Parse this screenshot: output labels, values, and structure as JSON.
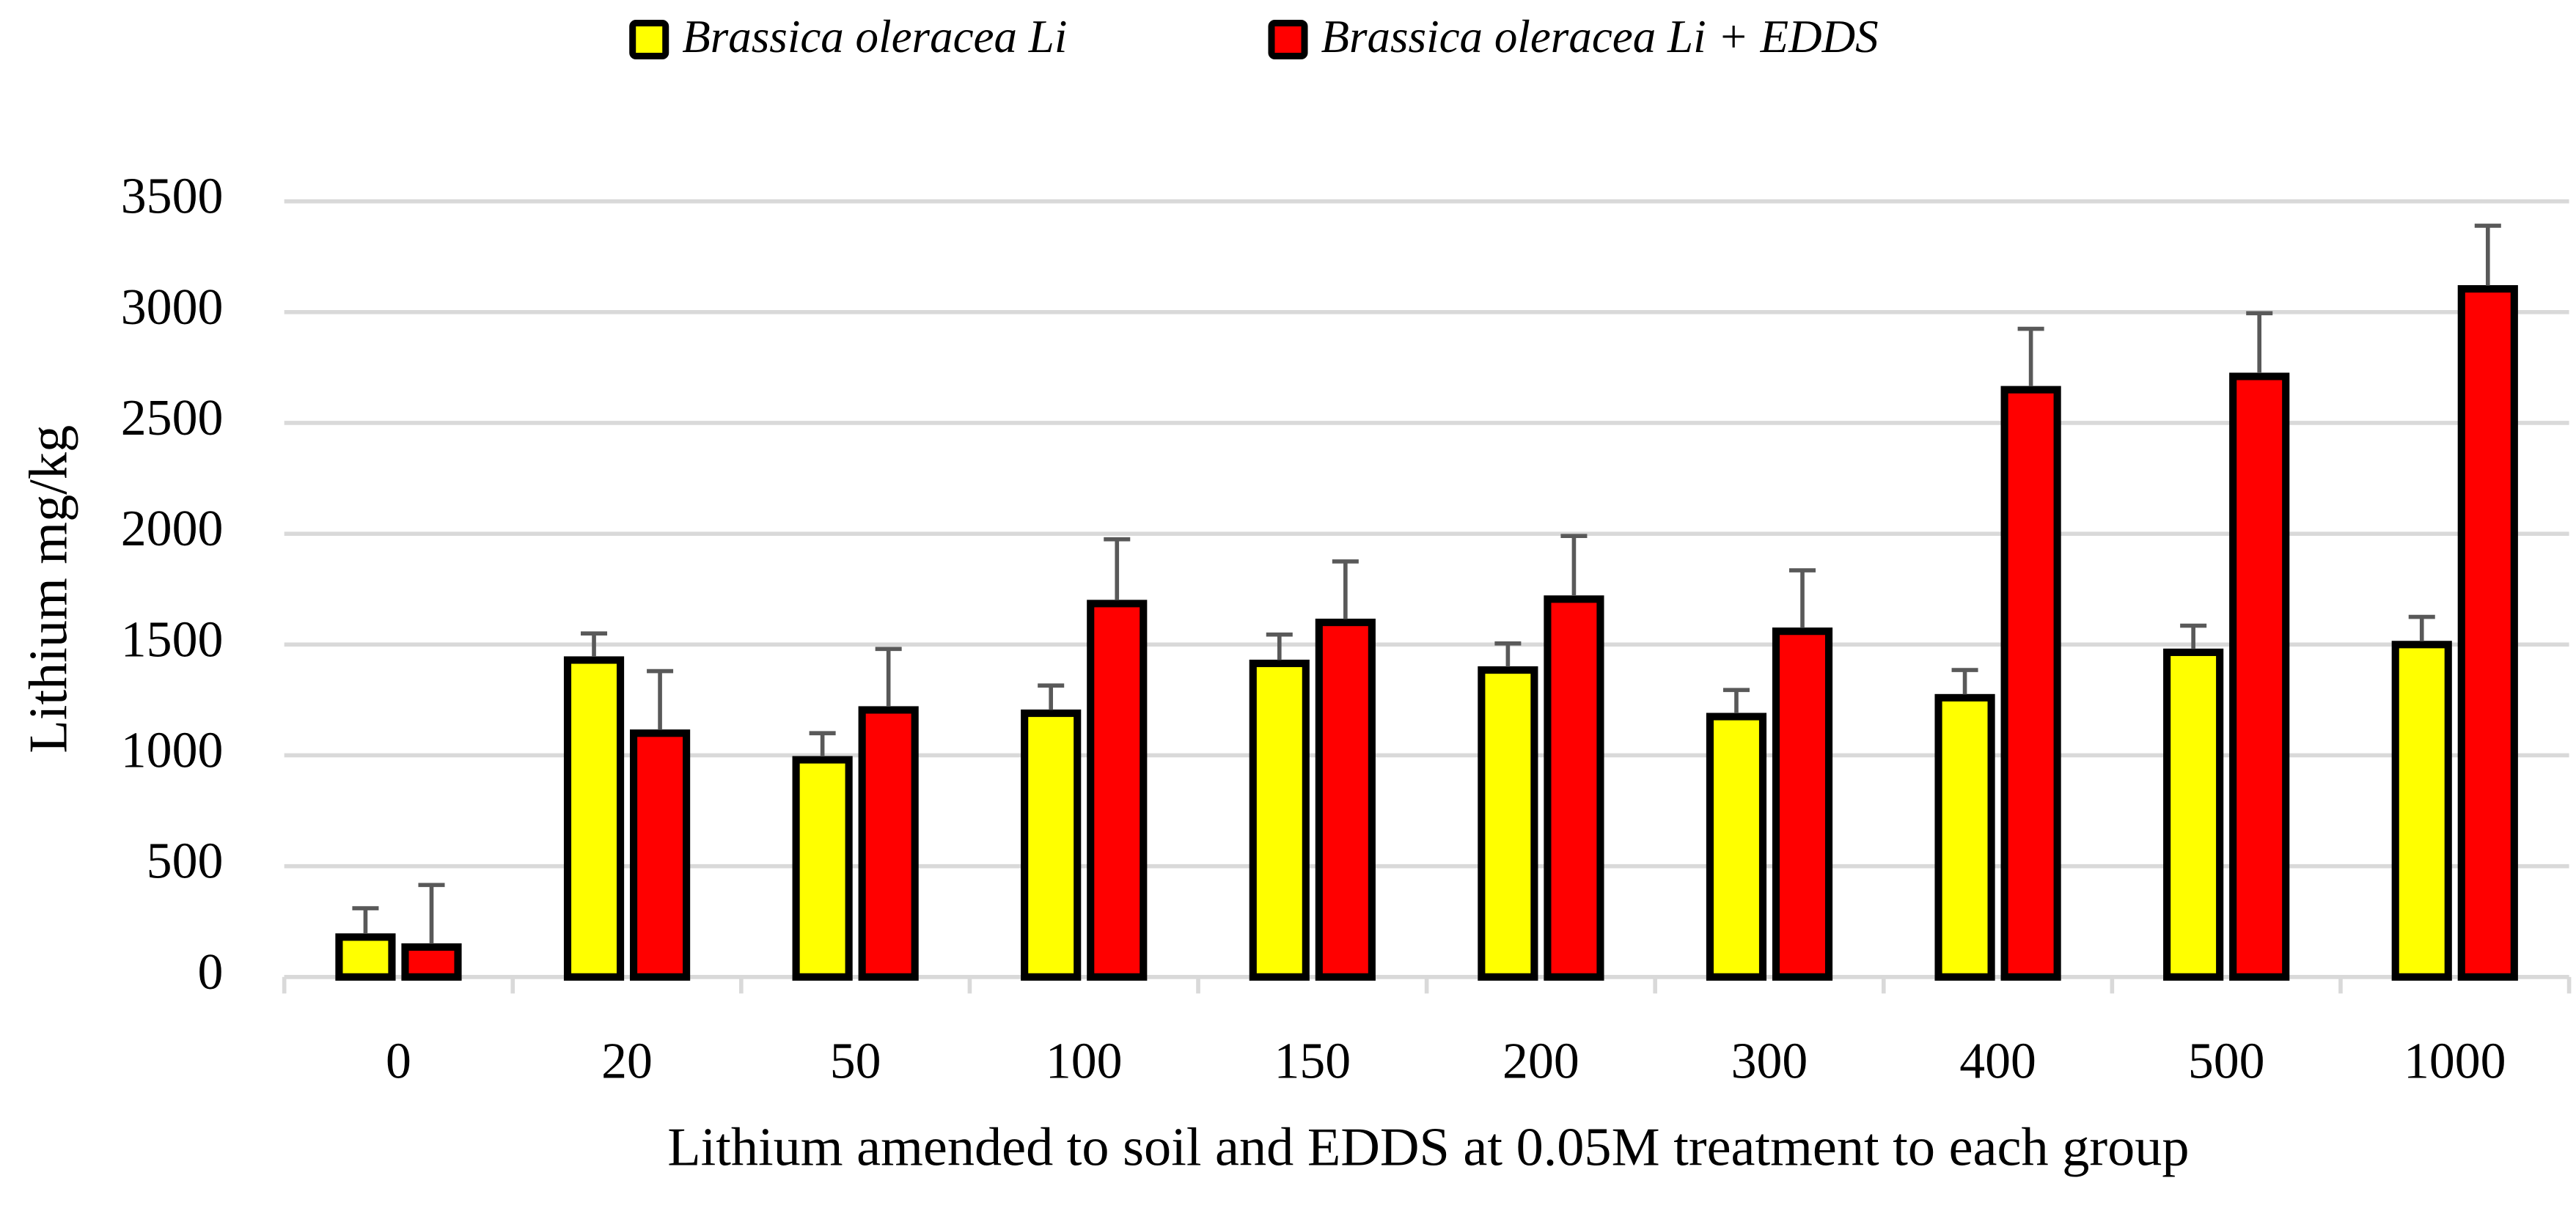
{
  "chart_data": {
    "type": "bar",
    "x_label": "Lithium amended to soil and EDDS at 0.05M treatment to each group",
    "y_label": "Lithium mg/kg",
    "categories": [
      "0",
      "20",
      "50",
      "100",
      "150",
      "200",
      "300",
      "400",
      "500",
      "1000"
    ],
    "series": [
      {
        "name": "Brassica oleracea Li",
        "color": "#ffff00",
        "values": [
          180,
          1430,
          980,
          1190,
          1415,
          1385,
          1175,
          1260,
          1465,
          1500
        ],
        "errors": [
          130,
          120,
          120,
          125,
          130,
          120,
          120,
          125,
          120,
          125
        ]
      },
      {
        "name": "Brassica oleracea Li + EDDS",
        "color": "#ff0000",
        "values": [
          135,
          1100,
          1205,
          1685,
          1600,
          1705,
          1560,
          2650,
          2710,
          3105
        ],
        "errors": [
          280,
          280,
          275,
          290,
          275,
          285,
          275,
          275,
          285,
          285
        ]
      }
    ],
    "ylim": [
      0,
      3500
    ],
    "yticks": [
      0,
      500,
      1000,
      1500,
      2000,
      2500,
      3000,
      3500
    ],
    "grid": true,
    "legend": "top"
  }
}
